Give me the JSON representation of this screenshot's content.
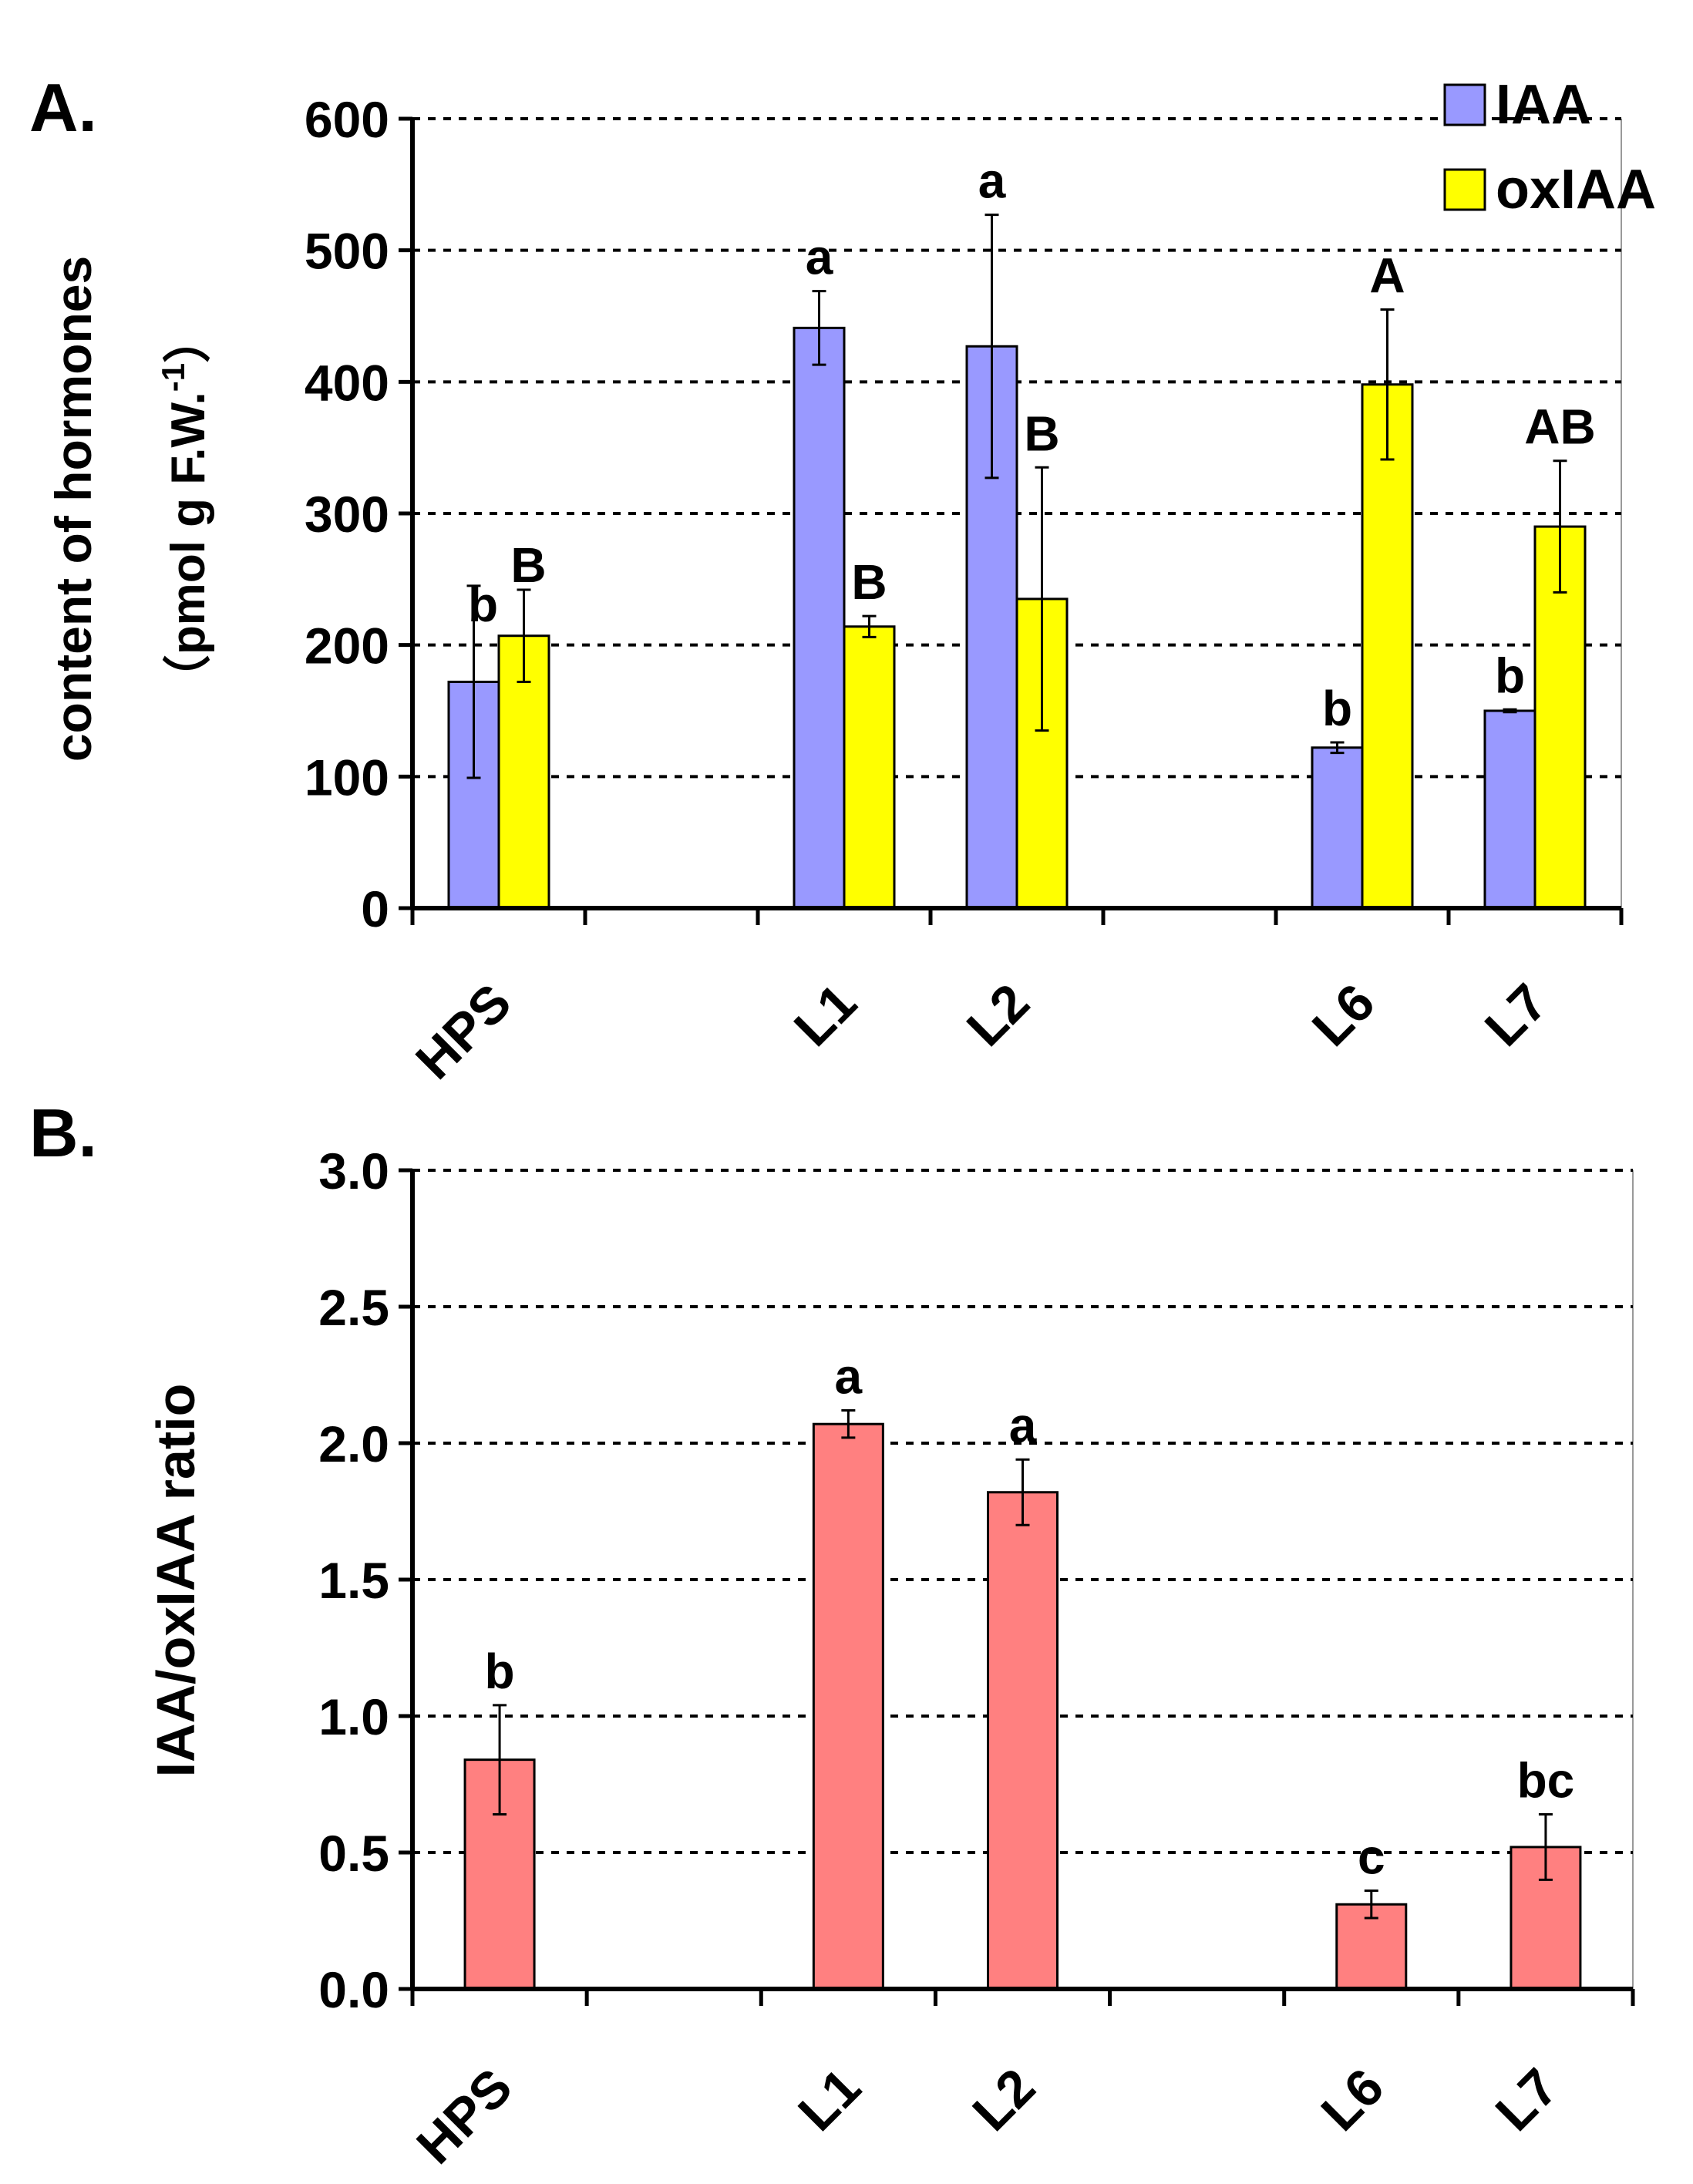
{
  "chart_data": [
    {
      "type": "bar",
      "panel_label": "A.",
      "categories": [
        "HPS",
        "",
        "L1",
        "L2",
        "",
        "L6",
        "L7"
      ],
      "ylabel": "content of hormones",
      "ylabel_units": "（pmol g F.W.",
      "ylabel_units_sup": "-1",
      "ylabel_units_close": "）",
      "ylim": [
        0,
        600
      ],
      "yticks": [
        0,
        100,
        200,
        300,
        400,
        500,
        600
      ],
      "grid": true,
      "legend": "top-right",
      "series": [
        {
          "name": "IAA",
          "color": "#9999ff",
          "values": [
            172,
            null,
            441,
            427,
            null,
            122,
            150
          ],
          "errors": [
            73,
            null,
            28,
            100,
            null,
            4,
            1
          ],
          "letters": [
            "b",
            "",
            "a",
            "a",
            "",
            "b",
            "b"
          ]
        },
        {
          "name": "oxIAA",
          "color": "#ffff00",
          "values": [
            207,
            null,
            214,
            235,
            null,
            398,
            290
          ],
          "errors": [
            35,
            null,
            8,
            100,
            null,
            57,
            50
          ],
          "letters": [
            "B",
            "",
            "B",
            "B",
            "",
            "A",
            "AB"
          ]
        }
      ]
    },
    {
      "type": "bar",
      "panel_label": "B.",
      "categories": [
        "HPS",
        "",
        "L1",
        "L2",
        "",
        "L6",
        "L7"
      ],
      "ylabel": "IAA/oxIAA ratio",
      "ylim": [
        0,
        3
      ],
      "yticks": [
        "0.0",
        "0.5",
        "1.0",
        "1.5",
        "2.0",
        "2.5",
        "3.0"
      ],
      "grid": true,
      "series": [
        {
          "name": "IAA/oxIAA ratio",
          "color": "#ff8080",
          "values": [
            0.84,
            null,
            2.07,
            1.82,
            null,
            0.31,
            0.52
          ],
          "errors": [
            0.2,
            null,
            0.05,
            0.12,
            null,
            0.05,
            0.12
          ],
          "letters": [
            "b",
            "",
            "a",
            "a",
            "",
            "c",
            "bc"
          ]
        }
      ]
    }
  ]
}
